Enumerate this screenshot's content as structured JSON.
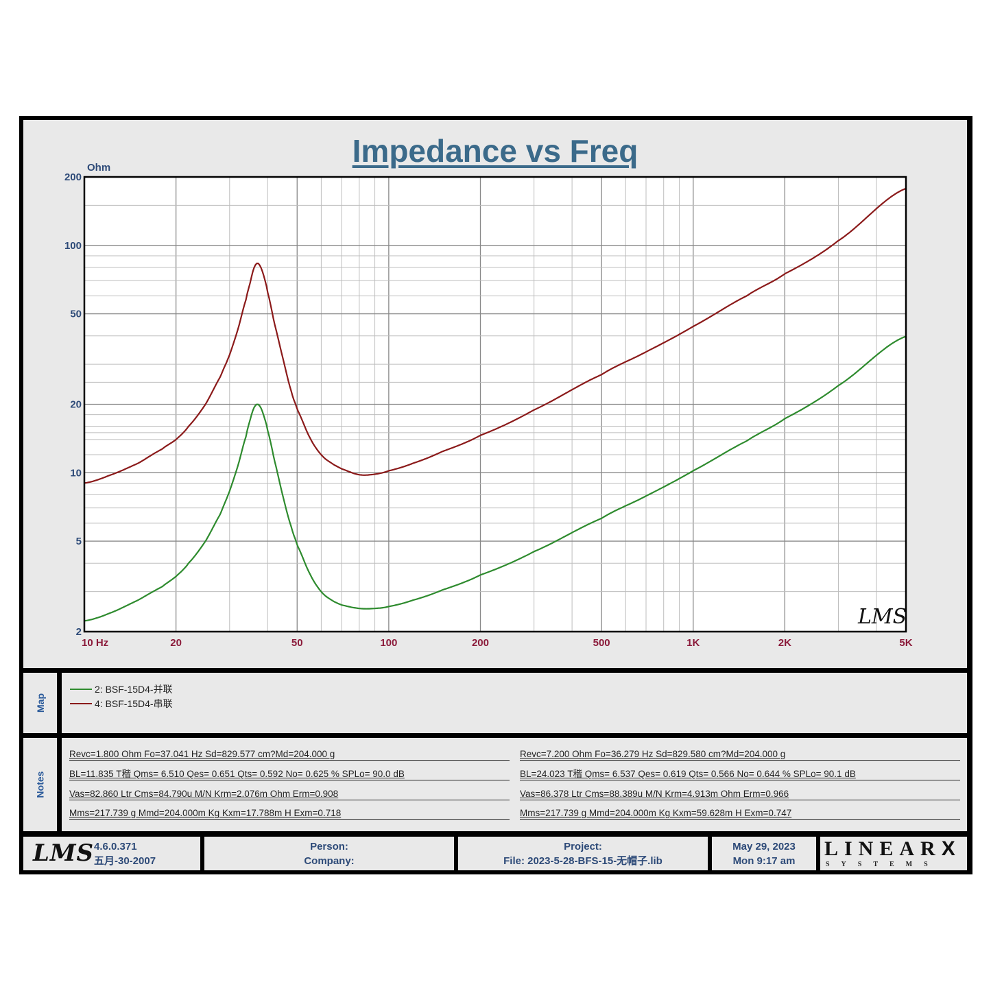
{
  "chart": {
    "title": "Impedance vs Freq",
    "y_unit": "Ohm",
    "x_unit": "Hz",
    "y_ticks": [
      {
        "value": 200,
        "label": "200"
      },
      {
        "value": 100,
        "label": "100"
      },
      {
        "value": 50,
        "label": "50"
      },
      {
        "value": 20,
        "label": "20"
      },
      {
        "value": 10,
        "label": "10"
      },
      {
        "value": 5,
        "label": "5"
      },
      {
        "value": 2,
        "label": "2"
      }
    ],
    "x_ticks": [
      {
        "value": 10,
        "label": "10  Hz"
      },
      {
        "value": 20,
        "label": "20"
      },
      {
        "value": 50,
        "label": "50"
      },
      {
        "value": 100,
        "label": "100"
      },
      {
        "value": 200,
        "label": "200"
      },
      {
        "value": 500,
        "label": "500"
      },
      {
        "value": 1000,
        "label": "1K"
      },
      {
        "value": 2000,
        "label": "2K"
      },
      {
        "value": 5000,
        "label": "5K"
      }
    ],
    "watermark": "LMS"
  },
  "chart_data": {
    "type": "line",
    "title": "Impedance vs Freq",
    "xlabel": "Hz",
    "ylabel": "Ohm",
    "xscale": "log",
    "yscale": "log",
    "xlim": [
      10,
      5000
    ],
    "ylim": [
      2,
      200
    ],
    "grid": true,
    "legend_position": "below (Map panel)",
    "series": [
      {
        "name": "2: BSF-15D4-并联",
        "color": "#2e8b2e",
        "x": [
          10,
          12,
          15,
          18,
          20,
          22,
          25,
          28,
          30,
          32,
          34,
          35,
          36,
          37,
          38,
          39,
          40,
          42,
          45,
          48,
          50,
          55,
          60,
          65,
          70,
          80,
          90,
          100,
          120,
          150,
          200,
          300,
          500,
          700,
          1000,
          1500,
          2000,
          3000,
          5000
        ],
        "values": [
          2.23,
          2.4,
          2.75,
          3.15,
          3.5,
          4.0,
          5.0,
          6.6,
          8.3,
          10.8,
          14.5,
          17.0,
          19.2,
          20.0,
          19.3,
          17.5,
          15.3,
          11.5,
          7.8,
          5.7,
          4.8,
          3.6,
          3.0,
          2.75,
          2.62,
          2.53,
          2.53,
          2.58,
          2.75,
          3.05,
          3.55,
          4.5,
          6.3,
          7.9,
          10.2,
          13.8,
          17.3,
          24.2,
          39.8
        ]
      },
      {
        "name": "4: BSF-15D4-串联",
        "color": "#8b1a1a",
        "x": [
          10,
          12,
          15,
          18,
          20,
          22,
          25,
          28,
          30,
          32,
          34,
          35,
          36,
          37,
          38,
          39,
          40,
          42,
          45,
          48,
          50,
          55,
          60,
          65,
          70,
          80,
          90,
          100,
          120,
          150,
          200,
          300,
          500,
          700,
          1000,
          1500,
          2000,
          3000,
          5000
        ],
        "values": [
          9.0,
          9.7,
          11.0,
          12.7,
          14.0,
          16.0,
          20.0,
          26.5,
          33.0,
          43.0,
          58.0,
          68.0,
          79.0,
          83.5,
          80.0,
          72.0,
          62.0,
          46.0,
          31.5,
          22.5,
          19.0,
          14.3,
          12.0,
          11.0,
          10.4,
          9.8,
          9.85,
          10.2,
          11.0,
          12.4,
          14.6,
          18.9,
          27.0,
          34.0,
          44.0,
          60.0,
          75.0,
          105.0,
          178.0
        ]
      }
    ]
  },
  "map": {
    "label": "Map",
    "items": [
      {
        "label": "2: BSF-15D4-并联",
        "color": "#2e8b2e"
      },
      {
        "label": "4: BSF-15D4-串联",
        "color": "#8b1a1a"
      }
    ]
  },
  "notes": {
    "label": "Notes",
    "left": [
      "Revc=1.800 Ohm  Fo=37.041 Hz  Sd=829.577 cm?Md=204.000 g",
      "BL=11.835 T稭  Qms= 6.510  Qes= 0.651  Qts= 0.592  No= 0.625 %  SPLo= 90.0 dB",
      "Vas=82.860 Ltr  Cms=84.790u M/N  Krm=2.076m Ohm  Erm=0.908",
      "Mms=217.739 g  Mmd=204.000m Kg  Kxm=17.788m H  Exm=0.718"
    ],
    "right": [
      "Revc=7.200 Ohm  Fo=36.279 Hz  Sd=829.580 cm?Md=204.000 g",
      "BL=24.023 T稭  Qms= 6.537  Qes= 0.619  Qts= 0.566  No= 0.644 %  SPLo= 90.1 dB",
      "Vas=86.378 Ltr  Cms=88.389u M/N  Krm=4.913m Ohm  Erm=0.966",
      "Mms=217.739 g  Mmd=204.000m Kg  Kxm=59.628m H  Exm=0.747"
    ]
  },
  "footer": {
    "logo": "LMS",
    "version": "4.6.0.371",
    "build_date": "五月-30-2007",
    "person_label": "Person:",
    "company_label": "Company:",
    "project_label": "Project:",
    "file_label": "File: 2023-5-28-BFS-15-无帽子.lib",
    "date": "May 29, 2023",
    "time": "Mon  9:17 am",
    "brand_main": "LINEAR",
    "brand_x": "X",
    "brand_sub": "SYSTEMS"
  }
}
